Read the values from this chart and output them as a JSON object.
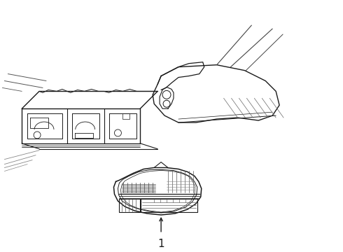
{
  "bg_color": "#ffffff",
  "line_color": "#1a1a1a",
  "lw": 0.8,
  "label_number": "1"
}
